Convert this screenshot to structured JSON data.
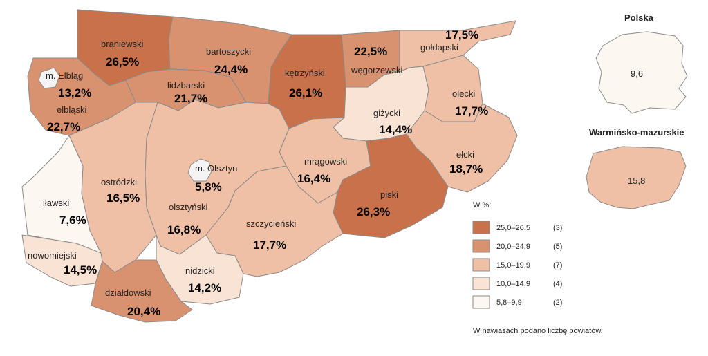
{
  "colors": {
    "c1": "#c8714a",
    "c2": "#d9926f",
    "c3": "#efc0a5",
    "c4": "#f9e3d4",
    "c5": "#fdf7f2",
    "border": "#8a8a8a",
    "enclave": "#f4f4f4"
  },
  "districts": [
    {
      "id": "braniewski",
      "name": "braniewski",
      "value": "26,5%",
      "cls": "c1"
    },
    {
      "id": "bartoszycki",
      "name": "bartoszycki",
      "value": "24,4%",
      "cls": "c2"
    },
    {
      "id": "ketrzynski",
      "name": "kętrzyński",
      "value": "26,1%",
      "cls": "c1"
    },
    {
      "id": "wegorzewski",
      "name": "węgorzewski",
      "value": "22,5%",
      "cls": "c2"
    },
    {
      "id": "goldapski",
      "name": "gołdapski",
      "value": "17,5%",
      "cls": "c3"
    },
    {
      "id": "elblaski",
      "name": "elbląski",
      "value": "22,7%",
      "cls": "c2"
    },
    {
      "id": "lidzbarski",
      "name": "lidzbarski",
      "value": "21,7%",
      "cls": "c2"
    },
    {
      "id": "gizycki",
      "name": "giżycki",
      "value": "14,4%",
      "cls": "c4"
    },
    {
      "id": "olecki",
      "name": "olecki",
      "value": "17,7%",
      "cls": "c3"
    },
    {
      "id": "elcki",
      "name": "ełcki",
      "value": "18,7%",
      "cls": "c3"
    },
    {
      "id": "mragowski",
      "name": "mrągowski",
      "value": "16,4%",
      "cls": "c3"
    },
    {
      "id": "piski",
      "name": "piski",
      "value": "26,3%",
      "cls": "c1"
    },
    {
      "id": "ostrodzki",
      "name": "ostródzki",
      "value": "16,5%",
      "cls": "c3"
    },
    {
      "id": "olsztynski",
      "name": "olsztyński",
      "value": "16,8%",
      "cls": "c3"
    },
    {
      "id": "szczycienski",
      "name": "szczycieński",
      "value": "17,7%",
      "cls": "c3"
    },
    {
      "id": "ilawski",
      "name": "iławski",
      "value": "7,6%",
      "cls": "c5"
    },
    {
      "id": "nowomiejski",
      "name": "nowomiejski",
      "value": "14,5%",
      "cls": "c4"
    },
    {
      "id": "dzialdowski",
      "name": "działdowski",
      "value": "20,4%",
      "cls": "c2"
    },
    {
      "id": "nidzicki",
      "name": "nidzicki",
      "value": "14,2%",
      "cls": "c4"
    },
    {
      "id": "elblag",
      "name": "m. Elbląg",
      "value": "13,2%",
      "cls": "c4"
    },
    {
      "id": "olsztyn",
      "name": "m. Olsztyn",
      "value": "5,8%",
      "cls": "c5"
    }
  ],
  "overview": {
    "polska": {
      "title": "Polska",
      "value": "9,6",
      "cls": "c5"
    },
    "region": {
      "title": "Warmińsko-mazurskie",
      "value": "15,8",
      "cls": "c3"
    }
  },
  "legend": {
    "title": "W %:",
    "items": [
      {
        "range": "25,0–26,5",
        "count": "(3)",
        "cls": "c1"
      },
      {
        "range": "20,0–24,9",
        "count": "(5)",
        "cls": "c2"
      },
      {
        "range": "15,0–19,9",
        "count": "(7)",
        "cls": "c3"
      },
      {
        "range": "10,0–14,9",
        "count": "(4)",
        "cls": "c4"
      },
      {
        "range": "5,8–9,9",
        "count": "(2)",
        "cls": "c5"
      }
    ],
    "note": "W nawiasach podano liczbę powiatów."
  }
}
